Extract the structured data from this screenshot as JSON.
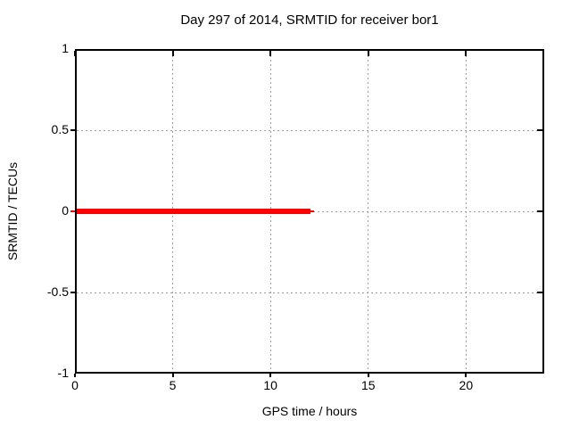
{
  "chart_data": {
    "type": "line",
    "title": "Day 297 of 2014, SRMTID for receiver bor1",
    "xlabel": "GPS time / hours",
    "ylabel": "SRMTID / TECUs",
    "xlim": [
      0,
      24
    ],
    "ylim": [
      -1,
      1
    ],
    "x_ticks": [
      0,
      5,
      10,
      15,
      20
    ],
    "x_tick_labels": [
      "0",
      "5",
      "10",
      "15",
      "20"
    ],
    "y_ticks": [
      -1,
      -0.5,
      0,
      0.5,
      1
    ],
    "y_tick_labels": [
      "-1",
      "-0.5",
      "0",
      "0.5",
      "1"
    ],
    "grid": true,
    "legend": "none",
    "series": [
      {
        "name": "SRMTID",
        "color": "#ff0000",
        "linewidth": 6,
        "x": [
          0,
          12.05
        ],
        "y": [
          0,
          0
        ]
      }
    ],
    "colors": {
      "background": "#ffffff",
      "axis": "#000000",
      "grid": "#9c9c9c",
      "series": "#ff0000",
      "text": "#000000"
    }
  }
}
